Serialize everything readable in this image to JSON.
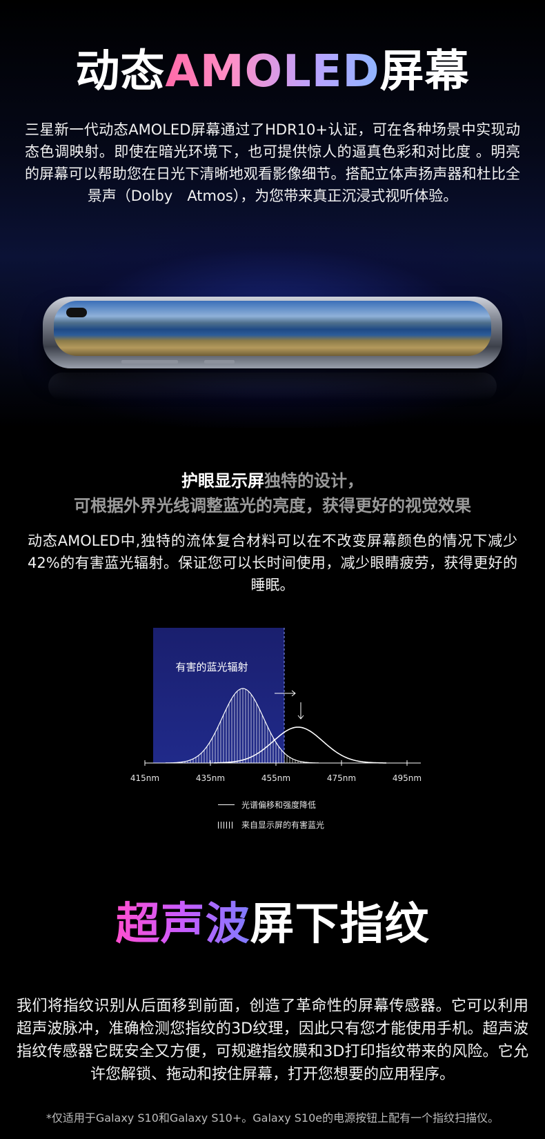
{
  "section1": {
    "title_part1": "动态",
    "title_part2": "AMOLED",
    "title_part3": "屏幕",
    "paragraph": "三星新一代动态AMOLED屏幕通过了HDR10+认证，可在各种场景中实现动态色调映射。即使在暗光环境下，也可提供惊人的逼真色彩和对比度 。明亮的屏幕可以帮助您在日光下清晰地观看影像细节。搭配立体声扬声器和杜比全景声（Dolby　Atmos），为您带来真正沉浸式视听体验。"
  },
  "section2": {
    "headline_white": "护眼显示屏",
    "headline_gray": "独特的设计，",
    "headline_line2": "可根据外界光线调整蓝光的亮度，获得更好的视觉效果",
    "paragraph": "动态AMOLED中,独特的流体复合材料可以在不改变屏幕颜色的情况下减少42%的有害蓝光辐射。保证您可以长时间使用，减少眼睛疲劳，获得更好的睡眠。"
  },
  "chart_data": {
    "type": "line",
    "x_ticks": [
      "415nm",
      "435nm",
      "455nm",
      "475nm",
      "495nm"
    ],
    "region_label": "有害的蓝光辐射",
    "series": [
      {
        "name": "光谱偏移和强度降低",
        "style": "line",
        "peak_x": "462nm"
      },
      {
        "name": "来自显示屏的有害蓝光",
        "style": "hatched",
        "peak_x": "447nm"
      }
    ],
    "colors": {
      "region": "#1a1f6e",
      "curve": "#ffffff"
    }
  },
  "section3": {
    "title_part1": "超声波",
    "title_part2": "屏下指纹",
    "paragraph": "我们将指纹识别从后面移到前面，创造了革命性的屏幕传感器。它可以利用超声波脉冲，准确检测您指纹的3D纹理，因此只有您才能使用手机。超声波指纹传感器它既安全又方便，可规避指纹膜和3D打印指纹带来的风险。它允许您解锁、拖动和按住屏幕，打开您想要的应用程序。",
    "footnote": "*仅适用于Galaxy S10和Galaxy S10+。Galaxy S10e的电源按钮上配有一个指纹扫描仪。"
  }
}
